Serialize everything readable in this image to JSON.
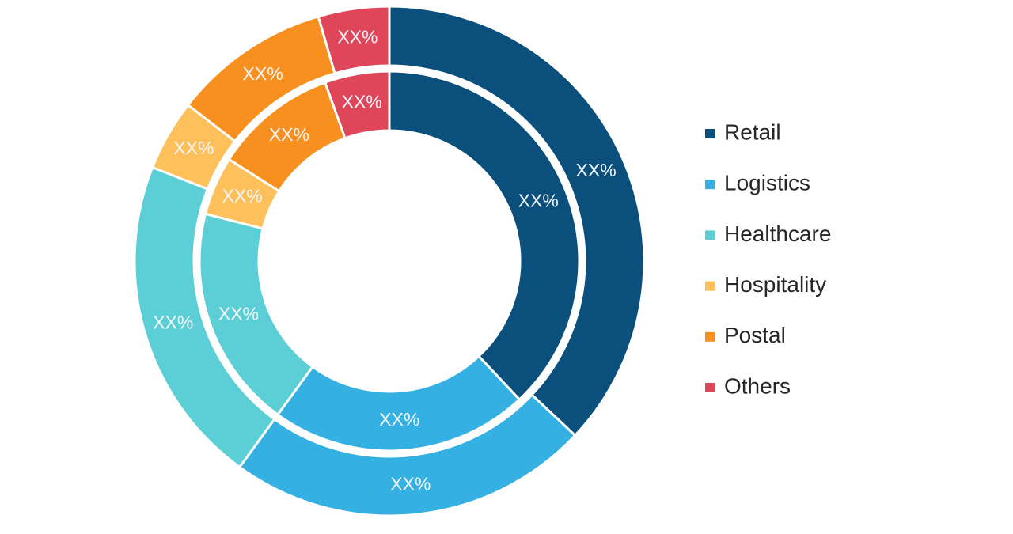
{
  "chart_data": {
    "type": "donut",
    "categories": [
      "Retail",
      "Logistics",
      "Healthcare",
      "Hospitality",
      "Postal",
      "Others"
    ],
    "colors": [
      "#0b4f7c",
      "#35b0e3",
      "#5ccfd6",
      "#fdc05a",
      "#f7901e",
      "#e0465a"
    ],
    "rings": [
      {
        "values": [
          37,
          23,
          21,
          4.5,
          10,
          4.5
        ],
        "value_labels": [
          "XX%",
          "XX%",
          "XX%",
          "XX%",
          "XX%",
          "XX%"
        ]
      },
      {
        "values": [
          38,
          22,
          19,
          5,
          10.5,
          5.5
        ],
        "value_labels": [
          "XX%",
          "XX%",
          "XX%",
          "XX%",
          "XX%",
          "XX%"
        ]
      }
    ],
    "legend": "right"
  }
}
